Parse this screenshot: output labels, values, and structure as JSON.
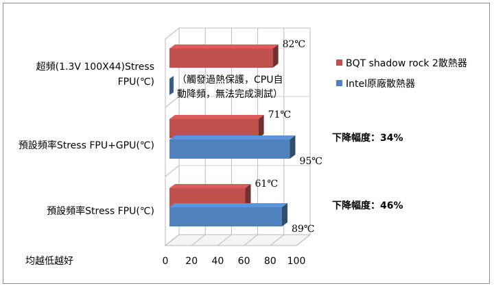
{
  "chart_data": {
    "type": "bar",
    "orientation": "horizontal",
    "style": "3d-clustered",
    "categories": [
      "超頻(1.3V 100X44)Stress FPU(℃)",
      "預設頻率Stress FPU+GPU(℃)",
      "預設頻率Stress FPU(℃)"
    ],
    "category_lines": [
      [
        "超頻(1.3V 100X44)Stress",
        "FPU(℃)"
      ],
      [
        "預設頻率Stress FPU+GPU(℃)"
      ],
      [
        "預設頻率Stress FPU(℃)"
      ]
    ],
    "series": [
      {
        "name": "BQT shadow rock 2散熱器",
        "color": "#c0504d",
        "values": [
          82,
          71,
          61
        ],
        "labels": [
          "82℃",
          "71℃",
          "61℃"
        ]
      },
      {
        "name": "Intel原廠散熱器",
        "color": "#4f81bd",
        "values": [
          null,
          95,
          89
        ],
        "labels": [
          "",
          "95℃",
          "89℃"
        ]
      }
    ],
    "xlim": [
      0,
      100
    ],
    "xticks": [
      "0",
      "20",
      "40",
      "60",
      "80",
      "100"
    ],
    "grid": true,
    "legend_position": "right",
    "footnote": "均越低越好",
    "annotations": [
      {
        "category_index": 0,
        "lines": [
          "（觸發過熱保護，CPU自",
          "動降頻，無法完成測試）"
        ]
      },
      {
        "category_index": 1,
        "text": "下降幅度：34%"
      },
      {
        "category_index": 2,
        "text": "下降幅度：46%"
      }
    ]
  }
}
